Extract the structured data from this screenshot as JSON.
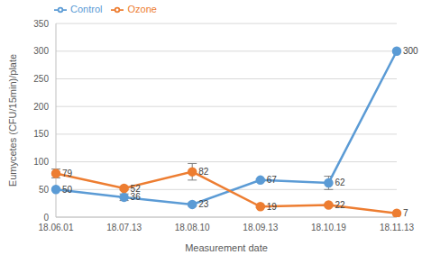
{
  "chart_data": {
    "type": "line",
    "x_label": "Measurement date",
    "y_label": "Eumycetes (CFU/15min)/plate",
    "categories": [
      "18.06.01",
      "18.07.13",
      "18.08.10",
      "18.09.13",
      "18.10.19",
      "18.11.13"
    ],
    "series": [
      {
        "name": "Control",
        "color": "#5B9BD5",
        "marker": "circle",
        "values": [
          50,
          36,
          23,
          67,
          62,
          300
        ],
        "errors": [
          2,
          6,
          3,
          2,
          12,
          1
        ]
      },
      {
        "name": "Ozone",
        "color": "#ED7D31",
        "marker": "circle",
        "values": [
          79,
          52,
          82,
          19,
          22,
          7
        ],
        "errors": [
          8,
          3,
          15,
          2,
          2,
          1
        ]
      }
    ],
    "ylim": [
      0,
      350
    ],
    "yticks": [
      0,
      50,
      100,
      150,
      200,
      250,
      300,
      350
    ],
    "grid": true,
    "legend": "top-left",
    "data_labels": true
  }
}
